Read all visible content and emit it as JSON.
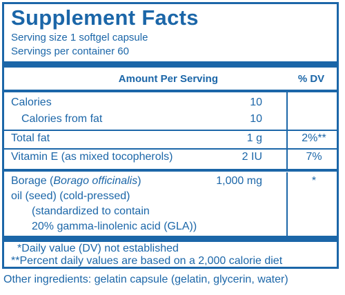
{
  "title": "Supplement Facts",
  "serving_size": "Serving size  1 softgel capsule",
  "servings_per_container": "Servings per container  60",
  "header": {
    "amount": "Amount Per Serving",
    "dv": "% DV"
  },
  "rows": [
    {
      "name": "Calories",
      "amount": "10",
      "dv": ""
    },
    {
      "name": "Calories from fat",
      "amount": "10",
      "dv": ""
    },
    {
      "name": "Total fat",
      "amount": "1 g",
      "dv": "2%**"
    },
    {
      "name": "Vitamin E (as mixed tocopherols)",
      "amount": "2 IU",
      "dv": "7%"
    }
  ],
  "borage": {
    "name_prefix": "Borage (",
    "name_italic": "Borago officinalis",
    "name_suffix": ")",
    "line2": "oil (seed) (cold-pressed)",
    "line3": "(standardized to contain",
    "line4": "20% gamma-linolenic acid (GLA))",
    "amount": "1,000 mg",
    "dv": "*"
  },
  "footnotes": [
    "*Daily value (DV) not established",
    "**Percent daily values are based on a 2,000 calorie diet"
  ],
  "other_ingredients": "Other ingredients:  gelatin capsule (gelatin, glycerin, water)"
}
